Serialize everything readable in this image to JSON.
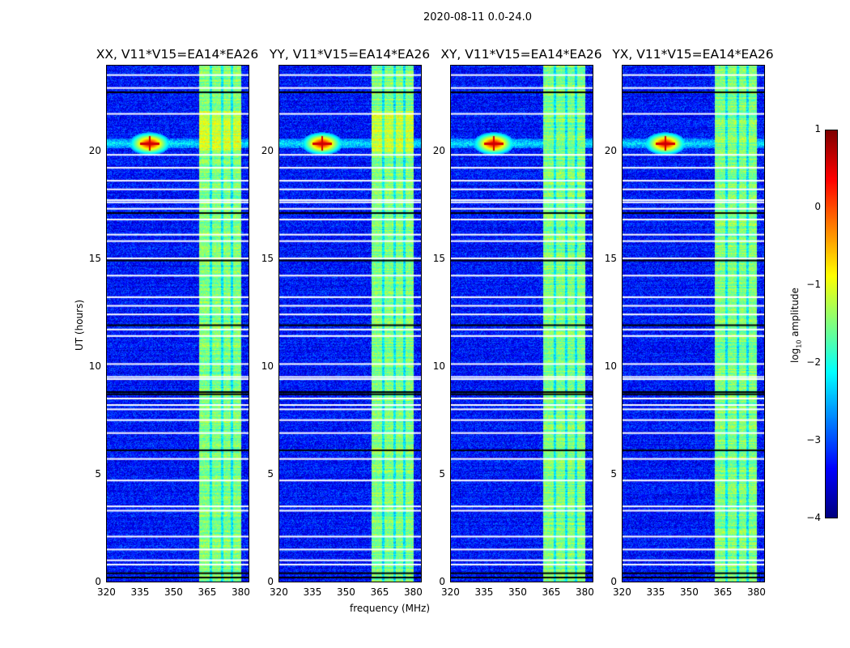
{
  "chart_data": {
    "type": "heatmap",
    "suptitle": "2020-08-11 0.0-24.0",
    "xlabel": "frequency (MHz)",
    "ylabel": "UT (hours)",
    "xlim": [
      320,
      384
    ],
    "ylim": [
      0,
      24
    ],
    "xticks": [
      "320",
      "335",
      "350",
      "365",
      "380"
    ],
    "xtick_values": [
      320,
      335,
      350,
      365,
      380
    ],
    "yticks": [
      "0",
      "5",
      "10",
      "15",
      "20"
    ],
    "ytick_values": [
      0,
      5,
      10,
      15,
      20
    ],
    "panels": [
      {
        "title": "XX, V11*V15=EA14*EA26"
      },
      {
        "title": "YY, V11*V15=EA14*EA26"
      },
      {
        "title": "XY, V11*V15=EA14*EA26"
      },
      {
        "title": "YX, V11*V15=EA14*EA26"
      }
    ],
    "background_level_log10": -3.3,
    "band_mhz": [
      361,
      380
    ],
    "band_level_log10": -1.5,
    "rfi_source": {
      "freq_mhz": 339,
      "hour": 20.4,
      "peak_log10": 0.8
    },
    "flagged_hours_white": [
      0.9,
      1.1,
      1.6,
      2.2,
      3.4,
      3.6,
      4.8,
      5.8,
      7.0,
      7.6,
      8.1,
      8.3,
      8.6,
      9.5,
      9.6,
      10.2,
      11.5,
      11.8,
      12.5,
      12.9,
      13.3,
      14.3,
      15.1,
      15.9,
      16.2,
      16.9,
      17.4,
      17.7,
      17.8,
      18.3,
      18.7,
      19.3,
      19.9,
      21.8,
      23.0,
      23.6
    ],
    "gap_hours_black": [
      0.3,
      0.5,
      6.2,
      8.8,
      8.9,
      12.0,
      15.0,
      17.2,
      22.8
    ],
    "colorbar": {
      "label": "log10 amplitude",
      "label_main": "log",
      "label_sub": "10",
      "label_rest": " amplitude",
      "range": [
        -4,
        1
      ],
      "ticks": [
        "1",
        "0",
        "−1",
        "−2",
        "−3",
        "−4"
      ],
      "tick_values": [
        1,
        0,
        -1,
        -2,
        -3,
        -4
      ],
      "colormap": "jet"
    }
  }
}
